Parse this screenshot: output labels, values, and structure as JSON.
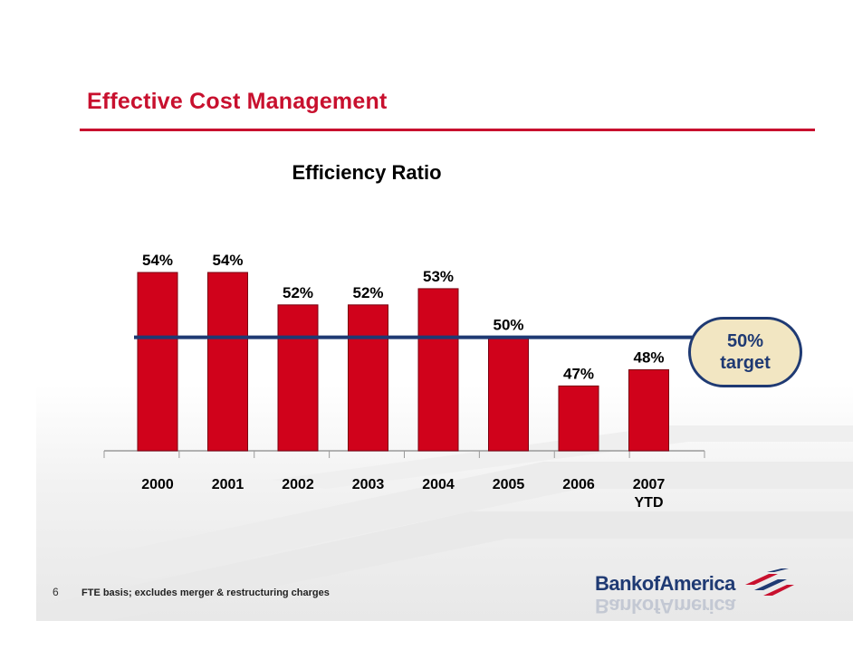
{
  "slide": {
    "heading": "Effective Cost Management",
    "page_number": "6",
    "footnote": "FTE basis; excludes merger & restructuring charges",
    "logo_text": "BankofAmerica",
    "colors": {
      "brand_red": "#c8102e",
      "bar_red": "#d0021b",
      "navy": "#1f3a73",
      "badge_fill": "#f2e6c2"
    }
  },
  "chart_data": {
    "type": "bar",
    "title": "Efficiency Ratio",
    "categories": [
      "2000",
      "2001",
      "2002",
      "2003",
      "2004",
      "2005",
      "2006",
      "2007\nYTD"
    ],
    "category_lines": [
      [
        "2000"
      ],
      [
        "2001"
      ],
      [
        "2002"
      ],
      [
        "2003"
      ],
      [
        "2004"
      ],
      [
        "2005"
      ],
      [
        "2006"
      ],
      [
        "2007",
        "YTD"
      ]
    ],
    "values": [
      54,
      54,
      52,
      52,
      53,
      50,
      47,
      48
    ],
    "data_labels": [
      "54%",
      "54%",
      "52%",
      "52%",
      "53%",
      "50%",
      "47%",
      "48%"
    ],
    "unit": "%",
    "ylim": [
      43,
      54
    ],
    "target": {
      "value": 50,
      "label_value": "50%",
      "label_text": "target"
    },
    "xlabel": "",
    "ylabel": "",
    "grid": false,
    "legend": "none"
  }
}
